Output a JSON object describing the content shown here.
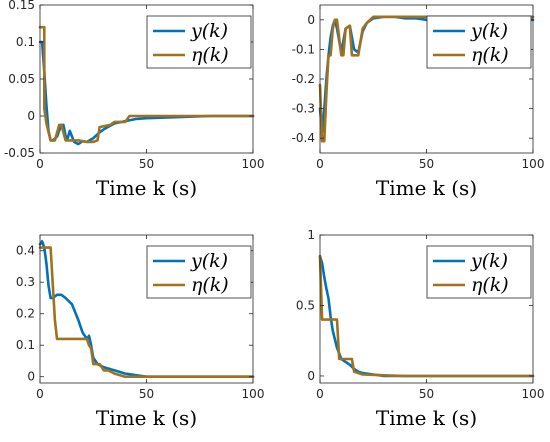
{
  "chart_data": [
    {
      "type": "line",
      "xlabel": "Time k (s)",
      "xlim": [
        0,
        100
      ],
      "ylim": [
        -0.05,
        0.15
      ],
      "xticks": [
        "0",
        "50",
        "100"
      ],
      "yticks": [
        "-0.05",
        "0",
        "0.05",
        "0.1",
        "0.15"
      ],
      "legend_position": "top-right",
      "series": [
        {
          "name": "y(k)",
          "color": "#0072BD",
          "x": [
            0,
            1,
            2,
            3,
            4,
            5,
            6,
            8,
            10,
            11,
            12,
            13,
            14,
            16,
            18,
            19,
            20,
            22,
            25,
            28,
            30,
            35,
            40,
            45,
            50,
            60,
            70,
            80,
            90,
            100
          ],
          "y": [
            0.1,
            0.1,
            0.06,
            0.015,
            -0.02,
            -0.033,
            -0.033,
            -0.028,
            -0.012,
            -0.012,
            -0.027,
            -0.03,
            -0.02,
            -0.035,
            -0.038,
            -0.036,
            -0.034,
            -0.035,
            -0.03,
            -0.022,
            -0.018,
            -0.01,
            -0.007,
            -0.004,
            -0.003,
            -0.002,
            -0.001,
            0,
            0,
            0
          ]
        },
        {
          "name": "η(k)",
          "color": "#A2711E",
          "x": [
            0,
            1,
            2,
            2,
            3,
            5,
            7,
            9,
            10,
            12,
            13,
            14,
            18,
            22,
            25,
            27,
            28,
            33,
            35,
            40,
            42,
            45,
            100
          ],
          "y": [
            0.12,
            0.12,
            0.12,
            0.01,
            -0.01,
            -0.033,
            -0.033,
            -0.012,
            -0.012,
            -0.033,
            -0.033,
            -0.033,
            -0.033,
            -0.035,
            -0.035,
            -0.033,
            -0.015,
            -0.012,
            -0.008,
            -0.008,
            0,
            0,
            0
          ]
        }
      ]
    },
    {
      "type": "line",
      "xlabel": "Time k (s)",
      "xlim": [
        0,
        100
      ],
      "ylim": [
        -0.45,
        0.05
      ],
      "xticks": [
        "0",
        "50",
        "100"
      ],
      "yticks": [
        "-0.4",
        "-0.3",
        "-0.2",
        "-0.1",
        "0"
      ],
      "legend_position": "top-right",
      "series": [
        {
          "name": "y(k)",
          "color": "#0072BD",
          "x": [
            0,
            1,
            2,
            3,
            4,
            5,
            6,
            7,
            8,
            10,
            12,
            14,
            16,
            18,
            20,
            22,
            25,
            30,
            35,
            40,
            45,
            50,
            60,
            70,
            80,
            90,
            100
          ],
          "y": [
            -0.3,
            -0.38,
            -0.3,
            -0.2,
            -0.12,
            -0.06,
            -0.02,
            0,
            -0.03,
            -0.11,
            -0.03,
            -0.02,
            -0.1,
            -0.11,
            -0.04,
            -0.01,
            0.005,
            0.01,
            0.01,
            0.005,
            0.005,
            0,
            0,
            0,
            0,
            0,
            0
          ]
        },
        {
          "name": "η(k)",
          "color": "#A2711E",
          "x": [
            0,
            1,
            2,
            3,
            4,
            5,
            6,
            7,
            8,
            10,
            11,
            12,
            14,
            15,
            18,
            20,
            22,
            25,
            40,
            100
          ],
          "y": [
            -0.22,
            -0.41,
            -0.41,
            -0.25,
            -0.12,
            -0.12,
            -0.03,
            0,
            0,
            -0.12,
            -0.12,
            -0.03,
            -0.02,
            -0.12,
            -0.12,
            -0.03,
            -0.01,
            0.01,
            0.01,
            0.01
          ]
        }
      ]
    },
    {
      "type": "line",
      "xlabel": "Time k (s)",
      "xlim": [
        0,
        100
      ],
      "ylim": [
        -0.02,
        0.45
      ],
      "xticks": [
        "0",
        "50",
        "100"
      ],
      "yticks": [
        "0",
        "0.1",
        "0.2",
        "0.3",
        "0.4"
      ],
      "legend_position": "top-right",
      "series": [
        {
          "name": "y(k)",
          "color": "#0072BD",
          "x": [
            0,
            1,
            2,
            3,
            4,
            5,
            6,
            8,
            10,
            12,
            15,
            18,
            20,
            22,
            23,
            24,
            25,
            27,
            30,
            35,
            40,
            45,
            50,
            60,
            70,
            80,
            90,
            100
          ],
          "y": [
            0.42,
            0.43,
            0.41,
            0.36,
            0.29,
            0.25,
            0.25,
            0.26,
            0.26,
            0.25,
            0.23,
            0.18,
            0.14,
            0.12,
            0.13,
            0.1,
            0.06,
            0.04,
            0.03,
            0.02,
            0.01,
            0.005,
            0,
            0,
            0,
            0,
            0,
            0
          ]
        },
        {
          "name": "η(k)",
          "color": "#A2711E",
          "x": [
            0,
            1,
            5,
            7,
            8,
            22,
            23,
            24,
            25,
            28,
            30,
            32,
            35,
            40,
            100
          ],
          "y": [
            0.41,
            0.41,
            0.41,
            0.18,
            0.12,
            0.12,
            0.1,
            0.09,
            0.04,
            0.04,
            0.02,
            0.02,
            0.01,
            0,
            0
          ]
        }
      ]
    },
    {
      "type": "line",
      "xlabel": "Time k (s)",
      "xlim": [
        0,
        100
      ],
      "ylim": [
        -0.05,
        1.0
      ],
      "xticks": [
        "0",
        "50",
        "100"
      ],
      "yticks": [
        "0",
        "0.5",
        "1"
      ],
      "legend_position": "top-right",
      "series": [
        {
          "name": "y(k)",
          "color": "#0072BD",
          "x": [
            0,
            1,
            2,
            3,
            4,
            5,
            6,
            7,
            8,
            9,
            10,
            12,
            14,
            16,
            18,
            20,
            25,
            30,
            35,
            40,
            45,
            50,
            60,
            70,
            80,
            90,
            100
          ],
          "y": [
            0.85,
            0.8,
            0.7,
            0.62,
            0.55,
            0.42,
            0.32,
            0.26,
            0.2,
            0.16,
            0.12,
            0.1,
            0.08,
            0.05,
            0.03,
            0.02,
            0.01,
            0,
            0,
            0,
            0,
            0,
            0,
            0,
            0,
            0,
            0
          ]
        },
        {
          "name": "η(k)",
          "color": "#A2711E",
          "x": [
            0,
            1,
            2,
            8,
            9,
            10,
            12,
            15,
            16,
            20,
            40,
            100
          ],
          "y": [
            0.85,
            0.4,
            0.4,
            0.4,
            0.12,
            0.12,
            0.12,
            0.12,
            0.03,
            0.01,
            0,
            0
          ]
        }
      ]
    }
  ]
}
